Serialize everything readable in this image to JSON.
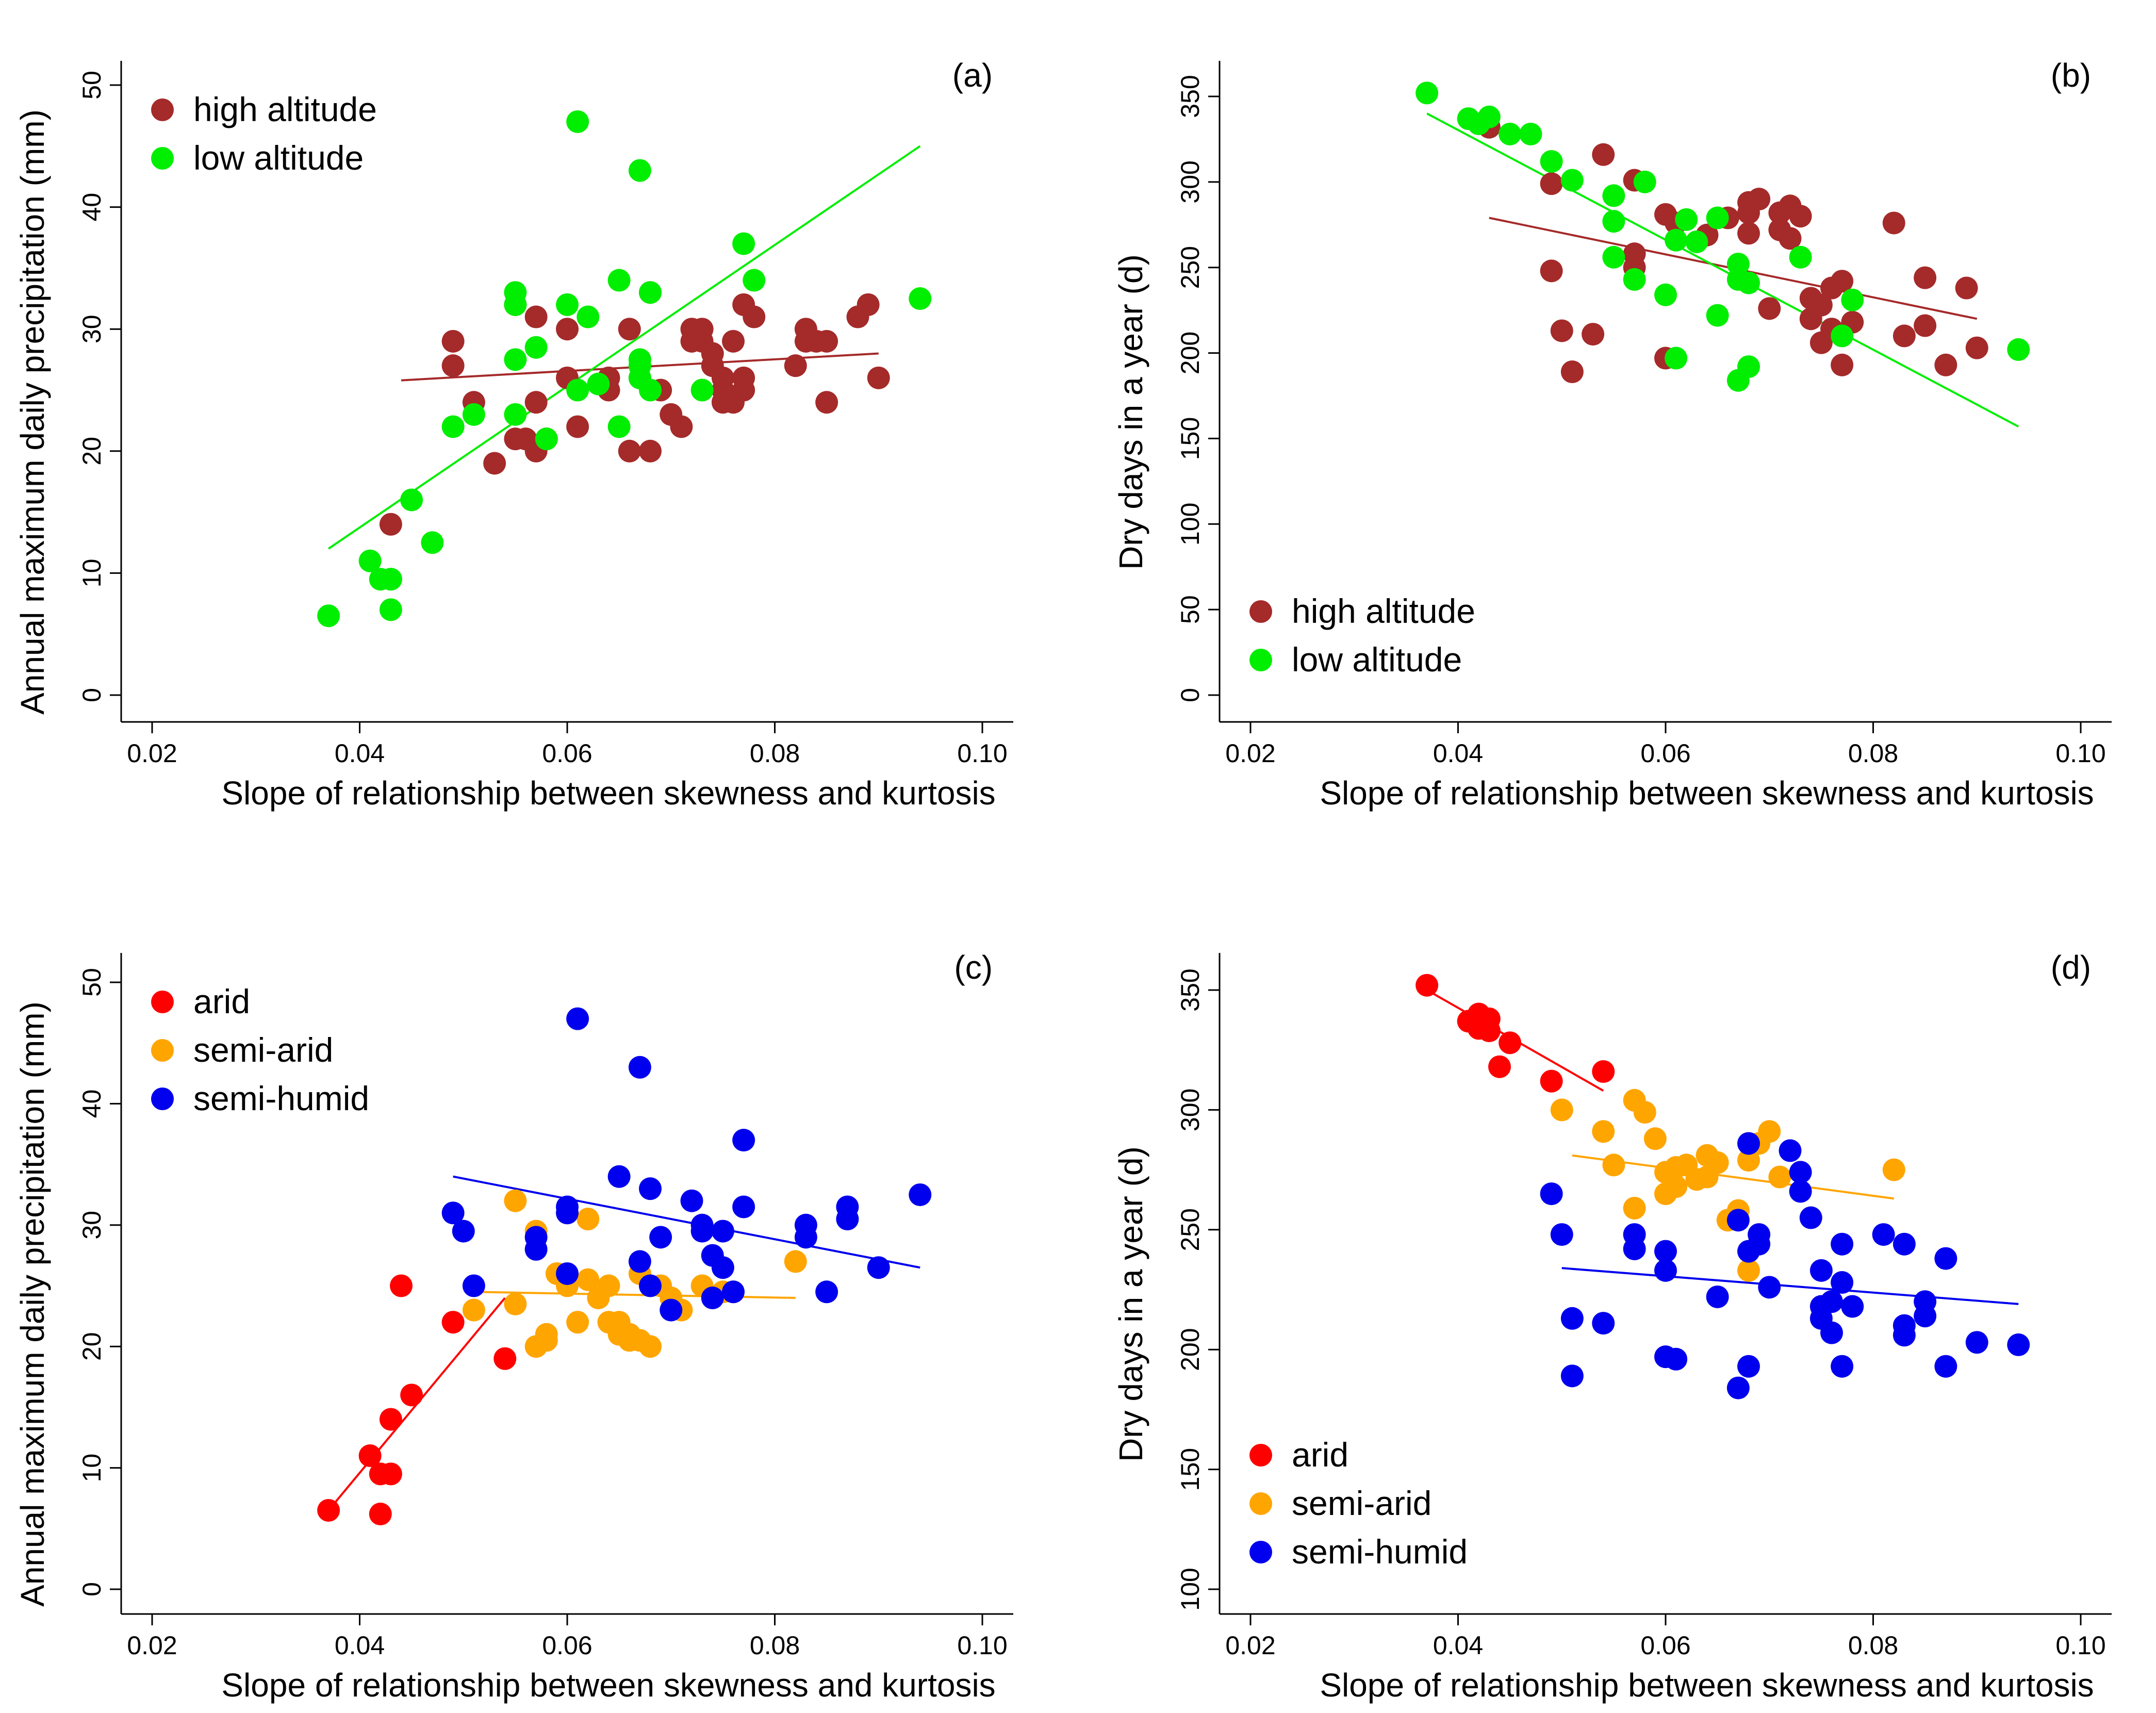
{
  "colors": {
    "high_altitude": "#a52a2a",
    "low_altitude": "#00ee00",
    "arid": "#ff0000",
    "semi_arid": "#ffa500",
    "semi_humid": "#0000ee"
  },
  "chart_data": [
    {
      "panel": "(a)",
      "type": "scatter",
      "xlabel": "Slope of relationship between skewness and kurtosis",
      "ylabel": "Annual maximum daily precipitation (mm)",
      "xlim": [
        0.02,
        0.1
      ],
      "ylim": [
        0,
        50
      ],
      "xticks": [
        "0.02",
        "0.04",
        "0.06",
        "0.08",
        "0.10"
      ],
      "yticks": [
        "0",
        "10",
        "20",
        "30",
        "40",
        "50"
      ],
      "legend": "top-left",
      "series": [
        {
          "name": "high altitude",
          "color": "#a52a2a",
          "x": [
            0.043,
            0.049,
            0.049,
            0.051,
            0.053,
            0.055,
            0.055,
            0.056,
            0.057,
            0.057,
            0.057,
            0.058,
            0.06,
            0.06,
            0.061,
            0.064,
            0.064,
            0.066,
            0.066,
            0.067,
            0.068,
            0.068,
            0.069,
            0.07,
            0.071,
            0.072,
            0.072,
            0.073,
            0.073,
            0.074,
            0.074,
            0.075,
            0.075,
            0.075,
            0.076,
            0.076,
            0.077,
            0.077,
            0.077,
            0.078,
            0.082,
            0.083,
            0.083,
            0.084,
            0.085,
            0.085,
            0.088,
            0.089,
            0.09
          ],
          "y": [
            14,
            29,
            27,
            24,
            19,
            32,
            21,
            21,
            24,
            20,
            31,
            21,
            30,
            26,
            22,
            26,
            25,
            30,
            20,
            26,
            20,
            33,
            25,
            23,
            22,
            30,
            29,
            30,
            29,
            28,
            27,
            26,
            24,
            25,
            29,
            24,
            32,
            26,
            25,
            31,
            27,
            30,
            29,
            29,
            24,
            29,
            31,
            32,
            26
          ],
          "fit": [
            [
              0.044,
              25.8
            ],
            [
              0.09,
              28.0
            ]
          ]
        },
        {
          "name": "low altitude",
          "color": "#00ee00",
          "x": [
            0.037,
            0.041,
            0.042,
            0.043,
            0.043,
            0.043,
            0.045,
            0.047,
            0.049,
            0.051,
            0.055,
            0.055,
            0.055,
            0.055,
            0.057,
            0.058,
            0.06,
            0.061,
            0.061,
            0.062,
            0.063,
            0.065,
            0.065,
            0.067,
            0.067,
            0.067,
            0.067,
            0.068,
            0.068,
            0.073,
            0.077,
            0.078,
            0.094
          ],
          "y": [
            6.5,
            11,
            9.5,
            9.5,
            9.5,
            7,
            16,
            12.5,
            22,
            23,
            27.5,
            23,
            32,
            33,
            28.5,
            21,
            32,
            47,
            25,
            31,
            25.5,
            34,
            22,
            43,
            27.5,
            27,
            26,
            33,
            25,
            25,
            37,
            34,
            32.5
          ],
          "fit": [
            [
              0.037,
              12.0
            ],
            [
              0.094,
              45.0
            ]
          ]
        }
      ]
    },
    {
      "panel": "(b)",
      "type": "scatter",
      "xlabel": "Slope of relationship between skewness and kurtosis",
      "ylabel": "Dry days in a year (d)",
      "xlim": [
        0.02,
        0.1
      ],
      "ylim": [
        0,
        350
      ],
      "xticks": [
        "0.02",
        "0.04",
        "0.06",
        "0.08",
        "0.10"
      ],
      "yticks": [
        "0",
        "50",
        "100",
        "150",
        "200",
        "250",
        "300",
        "350"
      ],
      "legend": "bottom-left",
      "series": [
        {
          "name": "high altitude",
          "color": "#a52a2a",
          "x": [
            0.043,
            0.049,
            0.049,
            0.05,
            0.051,
            0.053,
            0.054,
            0.057,
            0.057,
            0.057,
            0.06,
            0.06,
            0.061,
            0.064,
            0.066,
            0.068,
            0.068,
            0.068,
            0.069,
            0.07,
            0.071,
            0.071,
            0.072,
            0.072,
            0.073,
            0.074,
            0.074,
            0.075,
            0.075,
            0.076,
            0.076,
            0.077,
            0.077,
            0.078,
            0.082,
            0.083,
            0.085,
            0.085,
            0.087,
            0.089,
            0.09
          ],
          "y": [
            332,
            299,
            248,
            213,
            189,
            211,
            316,
            301,
            258,
            250,
            281,
            197,
            276,
            269,
            279,
            288,
            282,
            270,
            290,
            226,
            282,
            272,
            267,
            286,
            280,
            232,
            220,
            228,
            206,
            214,
            238,
            242,
            193,
            218,
            276,
            210,
            244,
            216,
            193,
            238,
            203
          ],
          "fit": [
            [
              0.043,
              279
            ],
            [
              0.09,
              220
            ]
          ]
        },
        {
          "name": "low altitude",
          "color": "#00ee00",
          "x": [
            0.037,
            0.041,
            0.042,
            0.043,
            0.045,
            0.047,
            0.049,
            0.051,
            0.055,
            0.055,
            0.055,
            0.057,
            0.058,
            0.06,
            0.061,
            0.061,
            0.062,
            0.063,
            0.065,
            0.065,
            0.067,
            0.067,
            0.067,
            0.068,
            0.068,
            0.073,
            0.077,
            0.078,
            0.094
          ],
          "y": [
            352,
            337,
            334,
            338,
            328,
            328,
            312,
            301,
            292,
            277,
            256,
            243,
            300,
            234,
            266,
            197,
            278,
            265,
            279,
            222,
            252,
            243,
            184,
            241,
            192,
            256,
            210,
            231,
            202
          ],
          "fit": [
            [
              0.037,
              340
            ],
            [
              0.094,
              157
            ]
          ]
        }
      ]
    },
    {
      "panel": "(c)",
      "type": "scatter",
      "xlabel": "Slope of relationship between skewness and kurtosis",
      "ylabel": "Annual maximum daily precipitation (mm)",
      "xlim": [
        0.02,
        0.1
      ],
      "ylim": [
        0,
        50
      ],
      "xticks": [
        "0.02",
        "0.04",
        "0.06",
        "0.08",
        "0.10"
      ],
      "yticks": [
        "0",
        "10",
        "20",
        "30",
        "40",
        "50"
      ],
      "legend": "top-left",
      "series": [
        {
          "name": "arid",
          "color": "#ff0000",
          "x": [
            0.037,
            0.041,
            0.042,
            0.042,
            0.043,
            0.043,
            0.044,
            0.045,
            0.049,
            0.054
          ],
          "y": [
            6.5,
            11,
            9.5,
            6.2,
            9.5,
            14,
            25,
            16,
            22,
            19
          ],
          "fit": [
            [
              0.037,
              6.5
            ],
            [
              0.054,
              24
            ]
          ]
        },
        {
          "name": "semi-arid",
          "color": "#ffa500",
          "x": [
            0.051,
            0.055,
            0.055,
            0.057,
            0.057,
            0.058,
            0.058,
            0.059,
            0.06,
            0.061,
            0.062,
            0.062,
            0.063,
            0.064,
            0.064,
            0.065,
            0.065,
            0.066,
            0.066,
            0.067,
            0.067,
            0.068,
            0.068,
            0.069,
            0.07,
            0.071,
            0.073,
            0.075,
            0.076,
            0.082
          ],
          "y": [
            23,
            32,
            23.5,
            29.5,
            20,
            21,
            20.5,
            26,
            25,
            22,
            25.5,
            30.5,
            24,
            22,
            25,
            21,
            22,
            21,
            20.5,
            26,
            20.5,
            20,
            25,
            25,
            24,
            23,
            25,
            24.5,
            24.5,
            27
          ],
          "fit": [
            [
              0.051,
              24.5
            ],
            [
              0.082,
              24.0
            ]
          ]
        },
        {
          "name": "semi-humid",
          "color": "#0000ee",
          "x": [
            0.049,
            0.05,
            0.051,
            0.057,
            0.057,
            0.06,
            0.06,
            0.06,
            0.061,
            0.065,
            0.067,
            0.067,
            0.068,
            0.068,
            0.069,
            0.07,
            0.072,
            0.073,
            0.073,
            0.074,
            0.074,
            0.075,
            0.075,
            0.076,
            0.077,
            0.077,
            0.083,
            0.083,
            0.085,
            0.087,
            0.087,
            0.09,
            0.094
          ],
          "y": [
            31,
            29.5,
            25,
            28,
            29,
            31.5,
            31,
            26,
            47,
            34,
            43,
            27,
            25,
            33,
            29,
            23,
            32,
            30,
            29.5,
            27.5,
            24,
            29.5,
            26.5,
            24.5,
            37,
            31.5,
            30,
            29,
            24.5,
            30.5,
            31.5,
            26.5,
            32.5
          ],
          "fit": [
            [
              0.049,
              34.0
            ],
            [
              0.094,
              26.5
            ]
          ]
        }
      ]
    },
    {
      "panel": "(d)",
      "type": "scatter",
      "xlabel": "Slope of relationship between skewness and kurtosis",
      "ylabel": "Dry days in a year (d)",
      "xlim": [
        0.02,
        0.1
      ],
      "ylim": [
        100,
        350
      ],
      "xticks": [
        "0.02",
        "0.04",
        "0.06",
        "0.08",
        "0.10"
      ],
      "yticks": [
        "100",
        "150",
        "200",
        "250",
        "300",
        "350"
      ],
      "legend": "bottom-left",
      "series": [
        {
          "name": "arid",
          "color": "#ff0000",
          "x": [
            0.037,
            0.041,
            0.042,
            0.042,
            0.043,
            0.043,
            0.044,
            0.045,
            0.049,
            0.054
          ],
          "y": [
            352,
            337,
            334,
            340,
            338,
            333,
            318,
            328,
            312,
            316
          ],
          "fit": [
            [
              0.037,
              350
            ],
            [
              0.054,
              308
            ]
          ]
        },
        {
          "name": "semi-arid",
          "color": "#ffa500",
          "x": [
            0.05,
            0.054,
            0.055,
            0.057,
            0.057,
            0.058,
            0.059,
            0.06,
            0.06,
            0.061,
            0.061,
            0.062,
            0.063,
            0.064,
            0.064,
            0.065,
            0.066,
            0.067,
            0.068,
            0.068,
            0.069,
            0.07,
            0.071,
            0.082
          ],
          "y": [
            300,
            291,
            277,
            304,
            259,
            299,
            288,
            274,
            265,
            276,
            268,
            277,
            271,
            281,
            272,
            278,
            254,
            258,
            279,
            233,
            286,
            291,
            272,
            275
          ],
          "fit": [
            [
              0.051,
              281
            ],
            [
              0.082,
              263
            ]
          ]
        },
        {
          "name": "semi-humid",
          "color": "#0000ee",
          "x": [
            0.049,
            0.05,
            0.051,
            0.051,
            0.054,
            0.057,
            0.057,
            0.06,
            0.06,
            0.06,
            0.061,
            0.065,
            0.067,
            0.067,
            0.068,
            0.068,
            0.068,
            0.069,
            0.069,
            0.07,
            0.072,
            0.073,
            0.073,
            0.074,
            0.075,
            0.075,
            0.075,
            0.076,
            0.076,
            0.077,
            0.077,
            0.077,
            0.078,
            0.081,
            0.083,
            0.083,
            0.083,
            0.085,
            0.085,
            0.087,
            0.087,
            0.09,
            0.094
          ],
          "y": [
            265,
            248,
            213,
            189,
            211,
            248,
            242,
            241,
            233,
            197,
            196,
            222,
            184,
            254,
            286,
            241,
            193,
            248,
            244,
            226,
            283,
            274,
            266,
            255,
            218,
            213,
            233,
            207,
            220,
            228,
            244,
            193,
            218,
            248,
            244,
            210,
            206,
            220,
            214,
            193,
            238,
            203,
            202
          ],
          "fit": [
            [
              0.05,
              234
            ],
            [
              0.094,
              219
            ]
          ]
        }
      ]
    }
  ]
}
